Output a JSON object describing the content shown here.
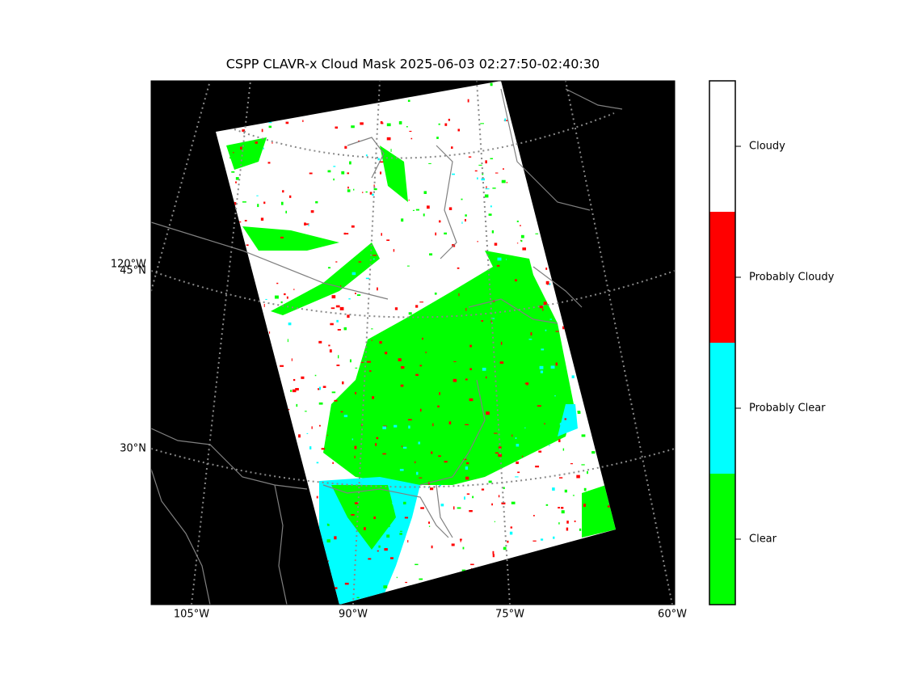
{
  "title": "CSPP CLAVR-x Cloud Mask 2025-06-03 02:27:50-02:40:30",
  "map": {
    "lon_labels": [
      "105°W",
      "90°W",
      "75°W",
      "60°W"
    ],
    "lat_labels": [
      "120°W",
      "45°N",
      "30°N"
    ]
  },
  "legend": {
    "items": [
      {
        "label": "Cloudy",
        "color": "#ffffff"
      },
      {
        "label": "Probably Cloudy",
        "color": "#ff0000"
      },
      {
        "label": "Probably Clear",
        "color": "#00ffff"
      },
      {
        "label": "Clear",
        "color": "#00ff00"
      }
    ]
  }
}
